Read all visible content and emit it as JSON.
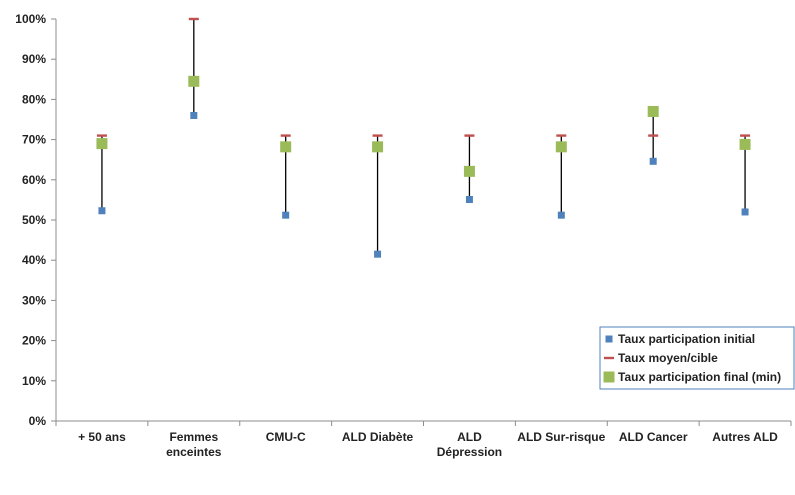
{
  "chart_data": {
    "type": "scatter",
    "title": "",
    "xlabel": "",
    "ylabel": "",
    "ylim": [
      0,
      100
    ],
    "y_ticks": [
      "0%",
      "10%",
      "20%",
      "30%",
      "40%",
      "50%",
      "60%",
      "70%",
      "80%",
      "90%",
      "100%"
    ],
    "grid": false,
    "legend_position": "bottom-right",
    "categories": [
      [
        "+ 50 ans"
      ],
      [
        "Femmes",
        "enceintes"
      ],
      [
        "CMU-C"
      ],
      [
        "ALD Diabète"
      ],
      [
        "ALD",
        "Dépression"
      ],
      [
        "ALD Sur-risque"
      ],
      [
        "ALD Cancer"
      ],
      [
        "Autres ALD"
      ]
    ],
    "series": [
      {
        "name": "Taux participation initial",
        "marker": "small-square",
        "color": "#4f81bd",
        "values": [
          52.3,
          76.0,
          51.2,
          41.5,
          55.1,
          51.2,
          64.6,
          52.0
        ]
      },
      {
        "name": "Taux moyen/cible",
        "marker": "dash",
        "color": "#c0504d",
        "values": [
          71,
          100,
          71,
          71,
          71,
          71,
          71,
          71
        ]
      },
      {
        "name": "Taux participation final (min)",
        "marker": "square",
        "color": "#9bbb59",
        "values": [
          69.0,
          84.5,
          68.2,
          68.2,
          62.1,
          68.2,
          77.0,
          68.8
        ]
      }
    ],
    "range_line_color": "#000000"
  }
}
